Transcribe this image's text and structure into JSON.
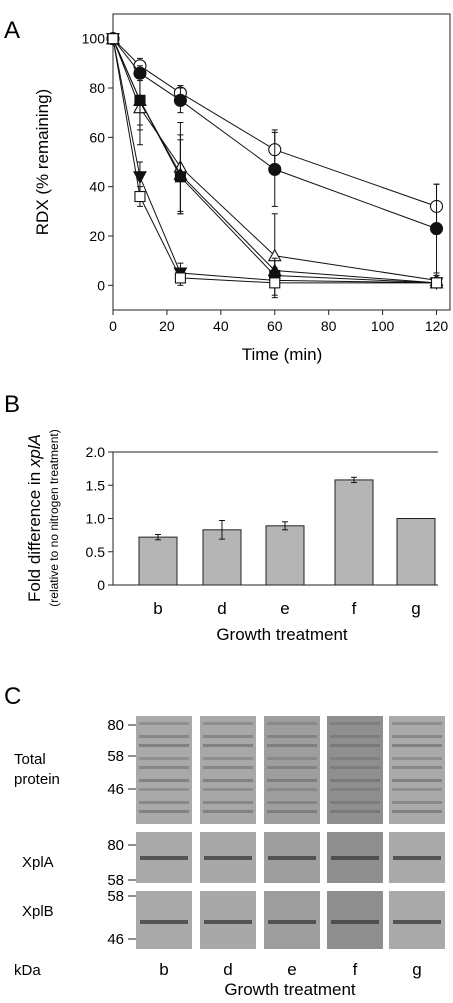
{
  "figure": {
    "panel_a": {
      "letter": "A",
      "xlabel": "Time (min)",
      "ylabel": "RDX (% remaining)",
      "xticks": [
        "0",
        "20",
        "40",
        "60",
        "80",
        "100",
        "120"
      ],
      "yticks": [
        "0",
        "20",
        "40",
        "60",
        "80",
        "100"
      ]
    },
    "panel_b": {
      "letter": "B",
      "ylabel_main": "Fold difference in ",
      "ylabel_gene": "xplA",
      "ylabel_sub": "(relative to no nitrogen treatment)",
      "xlabel": "Growth treatment",
      "yticks": [
        "0",
        "0.5",
        "1.0",
        "1.5",
        "2.0"
      ]
    },
    "panel_c": {
      "letter": "C",
      "row_labels": [
        "Total",
        "protein",
        "XplA",
        "XplB"
      ],
      "mw_total": [
        "80",
        "58",
        "46"
      ],
      "mw_xpla": [
        "80",
        "58"
      ],
      "mw_xplb": [
        "58",
        "46"
      ],
      "unit": "kDa",
      "lanes": [
        "b",
        "d",
        "e",
        "f",
        "g"
      ],
      "xlabel": "Growth treatment"
    }
  },
  "chart_data": [
    {
      "type": "line",
      "panel": "A",
      "xlabel": "Time (min)",
      "ylabel": "RDX (% remaining)",
      "xlim": [
        0,
        125
      ],
      "ylim": [
        -10,
        110
      ],
      "x": [
        0,
        10,
        25,
        60,
        120
      ],
      "series": [
        {
          "marker": "open-circle",
          "values": [
            100,
            89,
            78,
            55,
            32
          ],
          "errors": [
            2,
            3,
            3,
            8,
            9
          ]
        },
        {
          "marker": "filled-circle",
          "values": [
            100,
            86,
            75,
            47,
            23
          ],
          "errors": [
            2,
            3,
            5,
            15,
            18
          ]
        },
        {
          "marker": "open-triangle-up",
          "values": [
            100,
            72,
            48,
            12,
            2
          ],
          "errors": [
            2,
            15,
            18,
            17,
            2
          ]
        },
        {
          "marker": "filled-triangle-up",
          "values": [
            100,
            75,
            45,
            6,
            1
          ],
          "errors": [
            2,
            12,
            16,
            5,
            1
          ]
        },
        {
          "marker": "filled-square",
          "values": [
            100,
            75,
            44,
            4,
            1
          ],
          "errors": [
            2,
            10,
            15,
            3,
            1
          ]
        },
        {
          "marker": "filled-triangle-down",
          "values": [
            100,
            44,
            5,
            2,
            1
          ],
          "errors": [
            2,
            6,
            4,
            2,
            1
          ]
        },
        {
          "marker": "open-square",
          "values": [
            100,
            36,
            3,
            1,
            1
          ],
          "errors": [
            2,
            4,
            3,
            5,
            2
          ]
        }
      ]
    },
    {
      "type": "bar",
      "panel": "B",
      "xlabel": "Growth treatment",
      "ylabel": "Fold difference in xplA (relative to no nitrogen treatment)",
      "categories": [
        "b",
        "d",
        "e",
        "f",
        "g"
      ],
      "values": [
        0.72,
        0.83,
        0.89,
        1.58,
        1.0
      ],
      "errors": [
        0.04,
        0.14,
        0.06,
        0.04,
        0
      ],
      "ylim": [
        0,
        2.0
      ]
    }
  ]
}
